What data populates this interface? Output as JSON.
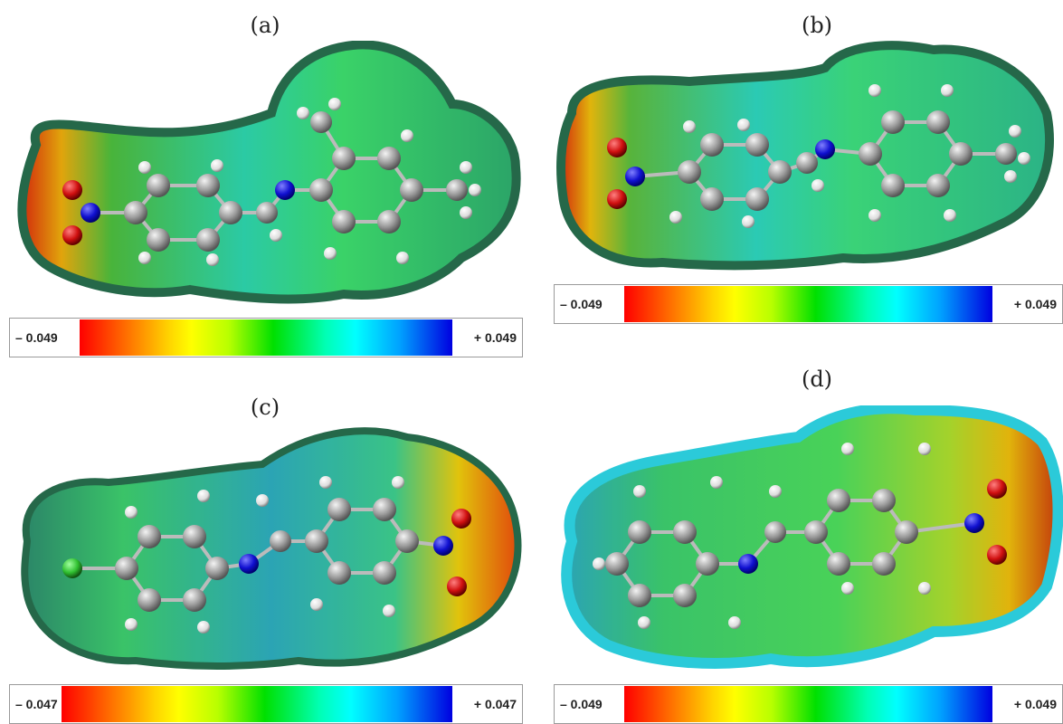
{
  "panels": [
    {
      "label": "(a)",
      "scale_min": "– 0.049",
      "scale_max": "+ 0.049"
    },
    {
      "label": "(b)",
      "scale_min": "– 0.049",
      "scale_max": "+ 0.049"
    },
    {
      "label": "(c)",
      "scale_min": "– 0.047",
      "scale_max": "+ 0.047"
    },
    {
      "label": "(d)",
      "scale_min": "– 0.049",
      "scale_max": "+ 0.049"
    }
  ],
  "colors": {
    "negative": "#ff0000",
    "neutral": "#00e000",
    "positive": "#0000e0",
    "carbon": "#9a9a9a",
    "hydrogen": "#eeeeee",
    "nitrogen": "#1010d0",
    "oxygen": "#d01010",
    "chlorine": "#30c030"
  }
}
